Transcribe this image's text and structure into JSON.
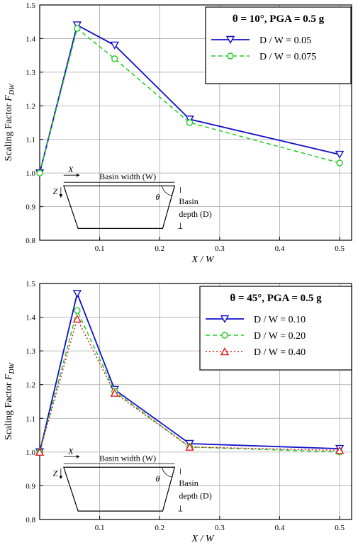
{
  "chart_data": [
    {
      "type": "line",
      "legend_title": "θ = 10°, PGA = 0.5 g",
      "xlabel": "X / W",
      "ylabel": "Scaling Factor F",
      "ylabel_sub": "DW",
      "xlim": [
        0,
        0.52
      ],
      "ylim": [
        0.8,
        1.5
      ],
      "xticks": [
        "0.1",
        "0.2",
        "0.3",
        "0.4",
        "0.5"
      ],
      "yticks": [
        "0.8",
        "0.9",
        "1.0",
        "1.1",
        "1.2",
        "1.3",
        "1.4",
        "1.5"
      ],
      "legend_position": "top-right",
      "grid": true,
      "series": [
        {
          "name": "D / W = 0.05",
          "color": "#1010c8",
          "dash": "solid",
          "marker": "triangle-down",
          "x": [
            0.0,
            0.0625,
            0.125,
            0.25,
            0.5
          ],
          "y": [
            1.0,
            1.44,
            1.38,
            1.16,
            1.055
          ]
        },
        {
          "name": "D / W = 0.075",
          "color": "#22cc22",
          "dash": "dashed",
          "marker": "circle",
          "x": [
            0.0,
            0.0625,
            0.125,
            0.25,
            0.5
          ],
          "y": [
            1.0,
            1.43,
            1.34,
            1.15,
            1.03
          ]
        }
      ],
      "inset": {
        "x_label": "X",
        "width_label": "Basin width (W)",
        "z_label": "Z",
        "theta_label": "θ",
        "depth_label1": "Basin",
        "depth_label2": "depth (D)"
      }
    },
    {
      "type": "line",
      "legend_title": "θ = 45°, PGA = 0.5 g",
      "xlabel": "X / W",
      "ylabel": "Scaling Factor F",
      "ylabel_sub": "DW",
      "xlim": [
        0,
        0.52
      ],
      "ylim": [
        0.8,
        1.5
      ],
      "xticks": [
        "0.1",
        "0.2",
        "0.3",
        "0.4",
        "0.5"
      ],
      "yticks": [
        "0.8",
        "0.9",
        "1.0",
        "1.1",
        "1.2",
        "1.3",
        "1.4",
        "1.5"
      ],
      "legend_position": "top-right",
      "grid": true,
      "series": [
        {
          "name": "D / W = 0.10",
          "color": "#1010c8",
          "dash": "solid",
          "marker": "triangle-down",
          "x": [
            0.0,
            0.0625,
            0.125,
            0.25,
            0.5
          ],
          "y": [
            1.0,
            1.47,
            1.185,
            1.025,
            1.01
          ]
        },
        {
          "name": "D / W = 0.20",
          "color": "#22cc22",
          "dash": "dashed",
          "marker": "circle",
          "x": [
            0.0,
            0.0625,
            0.125,
            0.25,
            0.5
          ],
          "y": [
            1.0,
            1.42,
            1.18,
            1.015,
            1.0
          ]
        },
        {
          "name": "D / W = 0.40",
          "color": "#e01818",
          "dash": "dotted",
          "marker": "triangle-up",
          "x": [
            0.0,
            0.0625,
            0.125,
            0.25,
            0.5
          ],
          "y": [
            1.0,
            1.395,
            1.175,
            1.015,
            1.005
          ]
        }
      ],
      "inset": {
        "x_label": "X",
        "width_label": "Basin width (W)",
        "z_label": "Z",
        "theta_label": "θ",
        "depth_label1": "Basin",
        "depth_label2": "depth (D)"
      }
    }
  ]
}
